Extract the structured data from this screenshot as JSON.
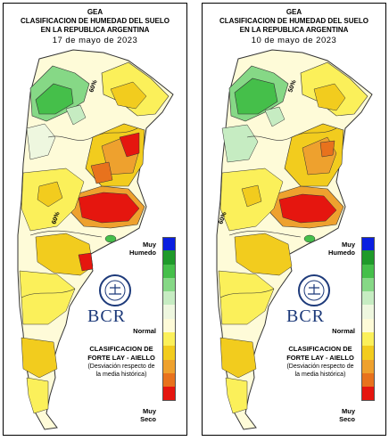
{
  "panels": [
    {
      "header_line1": "GEA",
      "header_line2": "CLASIFICACION DE HUMEDAD DEL SUELO",
      "header_line3": "EN LA REPUBLICA ARGENTINA",
      "date": "17 de mayo de 2023",
      "isoline_label_a": "60%",
      "isoline_label_b": "60%"
    },
    {
      "header_line1": "GEA",
      "header_line2": "CLASIFICACION DE HUMEDAD DEL SUELO",
      "header_line3": "EN LA REPUBLICA ARGENTINA",
      "date": "10 de mayo de 2023",
      "isoline_label_a": "50%",
      "isoline_label_b": "60%"
    }
  ],
  "legend": {
    "top_label_line1": "Muy",
    "top_label_line2": "Humedo",
    "middle_label": "Normal",
    "bottom_label_line1": "Muy",
    "bottom_label_line2": "Seco",
    "colors": [
      "#0a1fe0",
      "#1f9a2a",
      "#45bf4a",
      "#86d886",
      "#c6ecc2",
      "#eef7df",
      "#fefbd8",
      "#fbf05a",
      "#f2cc1e",
      "#eea12e",
      "#e8721d",
      "#e5160f"
    ]
  },
  "branding": {
    "logo_text": "BCR",
    "classification_line1": "CLASIFICACION DE",
    "classification_line2": "FORTE LAY - AIELLO",
    "description_line1": "(Desviación respecto de",
    "description_line2": "la media histórica)"
  }
}
